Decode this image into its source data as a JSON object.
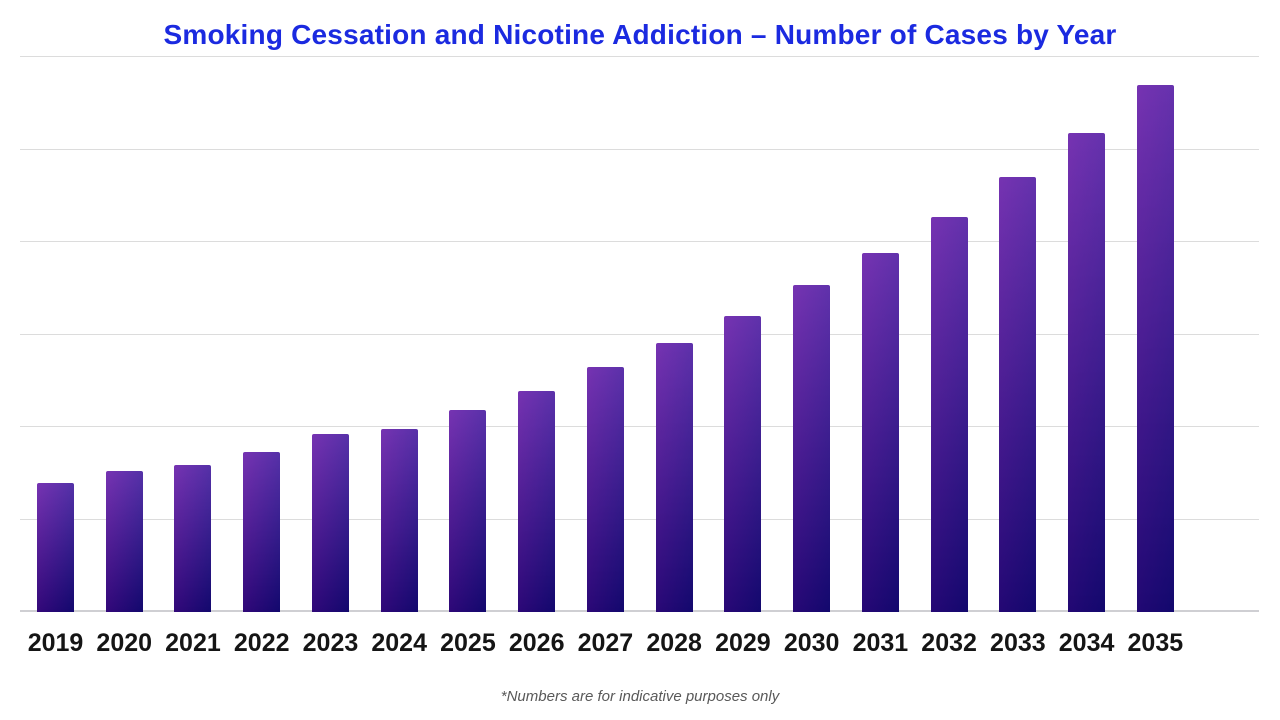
{
  "chart_data": {
    "type": "bar",
    "title": "Smoking Cessation and Nicotine Addiction – Number of Cases by Year",
    "footnote": "*Numbers are for indicative purposes only",
    "categories": [
      "2019",
      "2020",
      "2021",
      "2022",
      "2023",
      "2024",
      "2025",
      "2026",
      "2027",
      "2028",
      "2029",
      "2030",
      "2031",
      "2032",
      "2033",
      "2034",
      "2035"
    ],
    "values": [
      13.9,
      15.2,
      15.9,
      17.3,
      19.2,
      19.8,
      21.8,
      23.9,
      26.5,
      29.1,
      32.0,
      35.3,
      38.8,
      42.7,
      47.0,
      51.8,
      57.0
    ],
    "xlabel": "",
    "ylabel": "",
    "ylim": [
      0,
      60
    ],
    "gridline_step": 10,
    "grid": true,
    "legend": false,
    "y_axis_labels_visible": false
  },
  "colors": {
    "title_blue": "#1b2ae0",
    "bar_gradient_start": "#5c0ca3",
    "bar_gradient_mid": "#3a0a99",
    "bar_gradient_end": "#170a8c",
    "gridline": "#dcdcdc",
    "baseline": "#cfcfd3",
    "x_label": "#151515",
    "footnote_gray": "#595959",
    "background": "#ffffff"
  }
}
